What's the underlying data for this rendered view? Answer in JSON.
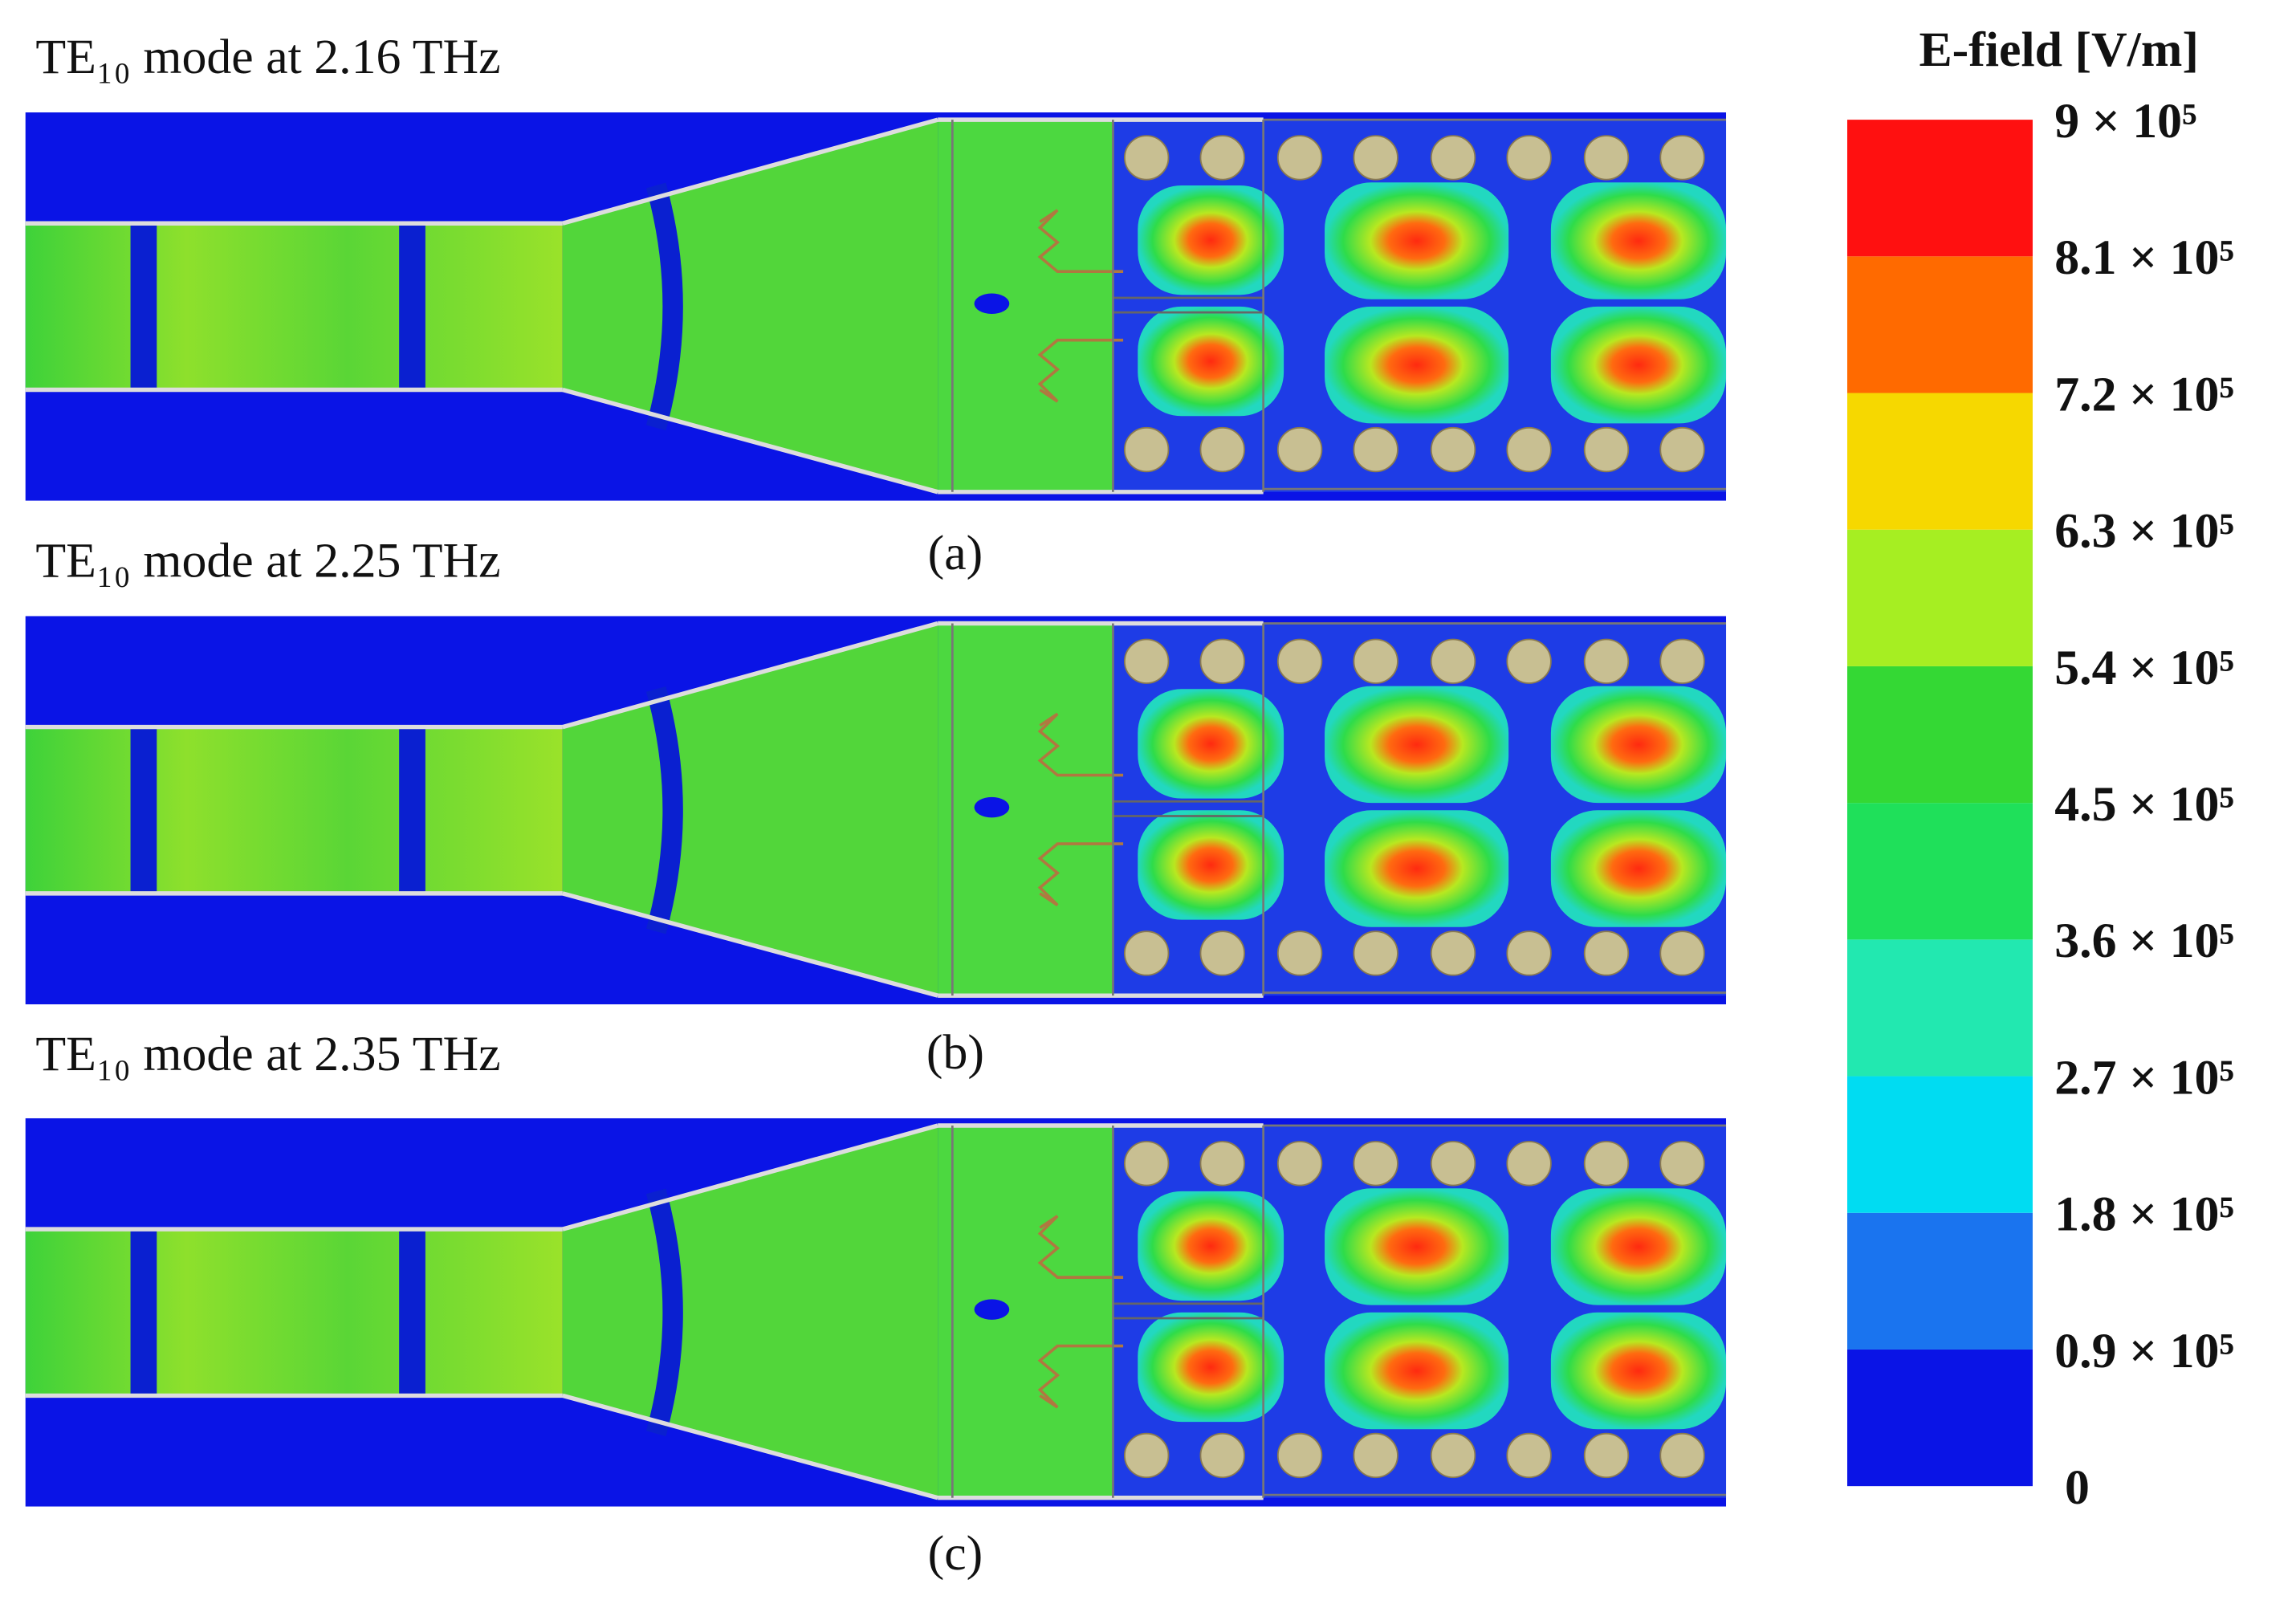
{
  "panels": [
    {
      "title": "TE₁₀ mode at 2.16 THz",
      "caption": "(a)"
    },
    {
      "title": "TE₁₀ mode at 2.25 THz",
      "caption": "(b)"
    },
    {
      "title": "TE₁₀ mode at 2.35 THz",
      "caption": "(c)"
    }
  ],
  "colorbar": {
    "title": "E-field [V/m]",
    "ticks": [
      0,
      {
        "value": 90000,
        "label": "0.9 × 10⁵"
      },
      {
        "value": 180000,
        "label": "1.8 × 10⁵"
      },
      {
        "value": 270000,
        "label": "2.7 × 10⁵"
      },
      {
        "value": 360000,
        "label": "3.6 × 10⁵"
      },
      {
        "value": 450000,
        "label": "4.5 × 10⁵"
      },
      {
        "value": 540000,
        "label": "5.4 × 10⁵"
      },
      {
        "value": 630000,
        "label": "6.3 × 10⁵"
      },
      {
        "value": 720000,
        "label": "7.2 × 10⁵"
      },
      {
        "value": 810000,
        "label": "8.1 × 10⁵"
      },
      {
        "value": 900000,
        "label": "9 × 10⁵"
      }
    ],
    "colors": [
      "#0a14e6",
      "#1a74ef",
      "#00dcf2",
      "#22e8b0",
      "#1fe05a",
      "#34d834",
      "#a6ee22",
      "#f6d800",
      "#ff6a00",
      "#ff1010"
    ]
  }
}
